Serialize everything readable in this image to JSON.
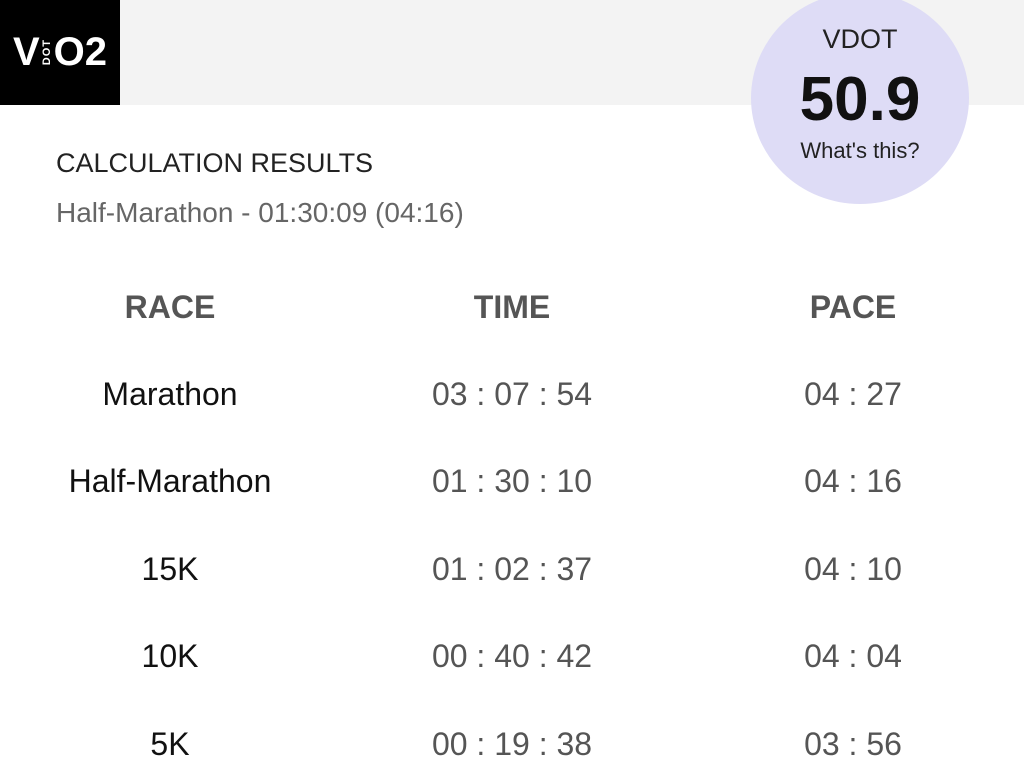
{
  "logo": {
    "v": "V",
    "dot": "DOT",
    "o2": "O2"
  },
  "badge": {
    "label": "VDOT",
    "value": "50.9",
    "link": "What's this?"
  },
  "results": {
    "heading": "CALCULATION RESULTS",
    "summary": "Half-Marathon - 01:30:09 (04:16)"
  },
  "table": {
    "headers": [
      "RACE",
      "TIME",
      "PACE"
    ],
    "rows": [
      [
        "Marathon",
        "03 : 07 : 54",
        "04 : 27"
      ],
      [
        "Half-Marathon",
        "01 : 30 : 10",
        "04 : 16"
      ],
      [
        "15K",
        "01 : 02 : 37",
        "04 : 10"
      ],
      [
        "10K",
        "00 : 40 : 42",
        "04 : 04"
      ],
      [
        "5K",
        "00 : 19 : 38",
        "03 : 56"
      ]
    ]
  }
}
